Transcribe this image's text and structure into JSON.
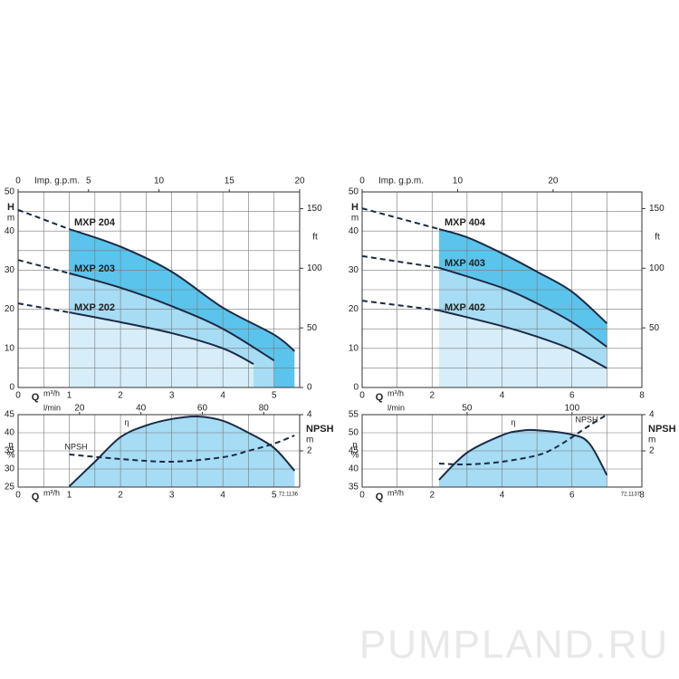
{
  "chart_data": [
    {
      "type": "line",
      "xlabel": "Q",
      "xunit": "m³/h",
      "ylabel": "H",
      "yunit": "m",
      "x2label": "Imp. g.p.m.",
      "y2unit": "ft",
      "xlim": [
        0,
        5.5
      ],
      "xticks": [
        0,
        1,
        2,
        3,
        4,
        5
      ],
      "xgrid": [
        0,
        0.5,
        1,
        1.5,
        2,
        2.5,
        3,
        3.5,
        4,
        4.5,
        5,
        5.5
      ],
      "ylim": [
        0,
        50
      ],
      "yticks": [
        0,
        10,
        20,
        30,
        40,
        50
      ],
      "ygrid": [
        0,
        5,
        10,
        15,
        20,
        25,
        30,
        35,
        40,
        45,
        50
      ],
      "x2lim": [
        0,
        20
      ],
      "x2ticks": [
        0,
        5,
        10,
        15,
        20
      ],
      "y2lim": [
        0,
        164
      ],
      "y2ticks": [
        0,
        50,
        100,
        150
      ],
      "series": [
        {
          "name": "MXP 204",
          "color": "#1b2b45",
          "fill": "#5bc4ec",
          "solid_from": 1,
          "x": [
            0,
            1,
            2,
            3,
            4,
            5,
            5.4
          ],
          "values": [
            45.4,
            40.5,
            36,
            29.6,
            20.4,
            13.5,
            9.3
          ]
        },
        {
          "name": "MXP 203",
          "color": "#1b2b45",
          "fill": "#a6dcf4",
          "solid_from": 1,
          "x": [
            0,
            1,
            2,
            3,
            4,
            5
          ],
          "values": [
            32.6,
            29.2,
            25.5,
            20.8,
            15,
            6.9
          ]
        },
        {
          "name": "MXP 202",
          "color": "#1b2b45",
          "fill": "#d7eefa",
          "solid_from": 1,
          "x": [
            0,
            1,
            2,
            3,
            4,
            4.6
          ],
          "values": [
            21.5,
            19.2,
            16.7,
            13.9,
            10,
            6
          ]
        }
      ]
    },
    {
      "type": "line",
      "xlabel": "Q",
      "xunit": "m³/h",
      "ylabel": "η",
      "yunit": "%",
      "x2unit": "l/min",
      "y2label": "NPSH",
      "y2unit": "m",
      "code": "72.1136",
      "xlim": [
        0,
        5.5
      ],
      "xticks": [
        0,
        1,
        2,
        3,
        4,
        5
      ],
      "xgrid": [
        0,
        0.5,
        1,
        1.5,
        2,
        2.5,
        3,
        3.5,
        4,
        4.5,
        5,
        5.5
      ],
      "ylim": [
        25,
        45
      ],
      "yticks": [
        25,
        30,
        35,
        40,
        45
      ],
      "ygrid": [
        25,
        30,
        35,
        40,
        45
      ],
      "x2lim": [
        0,
        91.7
      ],
      "x2ticks": [
        20,
        40,
        60,
        80
      ],
      "y2lim": [
        0,
        4
      ],
      "y2ticks": [
        2,
        4
      ],
      "series": [
        {
          "name": "η",
          "color": "#1b2b45",
          "fill": "#a6dcf4",
          "x": [
            1,
            1.5,
            2,
            2.5,
            3,
            3.5,
            4,
            4.5,
            5,
            5.4
          ],
          "values": [
            25.2,
            32,
            38.8,
            42,
            43.8,
            44.5,
            43.3,
            40,
            35.8,
            29.5
          ]
        },
        {
          "name": "NPSH",
          "color": "#1b2b45",
          "axis": "y2",
          "dashed": true,
          "x": [
            1,
            2,
            3,
            4,
            4.5,
            5,
            5.4
          ],
          "values": [
            1.8,
            1.55,
            1.4,
            1.65,
            2,
            2.4,
            2.85
          ]
        }
      ]
    },
    {
      "type": "line",
      "xlabel": "Q",
      "xunit": "m³/h",
      "ylabel": "H",
      "yunit": "m",
      "x2label": "Imp. g.p.m.",
      "y2unit": "ft",
      "xlim": [
        0,
        8
      ],
      "xticks": [
        0,
        2,
        4,
        6,
        8
      ],
      "xgrid": [
        0,
        1,
        2,
        3,
        4,
        5,
        6,
        7,
        8
      ],
      "ylim": [
        0,
        50
      ],
      "yticks": [
        0,
        10,
        20,
        30,
        40,
        50
      ],
      "ygrid": [
        0,
        5,
        10,
        15,
        20,
        25,
        30,
        35,
        40,
        45,
        50
      ],
      "x2lim": [
        0,
        29.3
      ],
      "x2ticks": [
        0,
        10,
        20
      ],
      "y2lim": [
        0,
        164
      ],
      "y2ticks": [
        50,
        100,
        150
      ],
      "series": [
        {
          "name": "MXP 404",
          "color": "#1b2b45",
          "fill": "#5bc4ec",
          "solid_from": 1,
          "x": [
            0,
            2.2,
            3,
            4,
            5,
            6,
            7
          ],
          "values": [
            45.8,
            40.5,
            38.4,
            34.3,
            29.6,
            24.5,
            16.4
          ]
        },
        {
          "name": "MXP 403",
          "color": "#1b2b45",
          "fill": "#a6dcf4",
          "solid_from": 1,
          "x": [
            0,
            2.2,
            4,
            5,
            6,
            7
          ],
          "values": [
            33.6,
            30.6,
            25.5,
            21.5,
            16.7,
            10.4
          ]
        },
        {
          "name": "MXP 402",
          "color": "#1b2b45",
          "fill": "#d7eefa",
          "solid_from": 1,
          "x": [
            0,
            2.2,
            4,
            5,
            6,
            7
          ],
          "values": [
            22.2,
            19.7,
            15.7,
            13,
            9.7,
            4.9
          ]
        }
      ]
    },
    {
      "type": "line",
      "xlabel": "Q",
      "xunit": "m³/h",
      "ylabel": "η",
      "yunit": "%",
      "x2unit": "l/min",
      "y2label": "NPSH",
      "y2unit": "m",
      "code": "72.1137",
      "xlim": [
        0,
        8
      ],
      "xticks": [
        0,
        2,
        4,
        6,
        8
      ],
      "xgrid": [
        0,
        1,
        2,
        3,
        4,
        5,
        6,
        7,
        8
      ],
      "ylim": [
        35,
        55
      ],
      "yticks": [
        35,
        40,
        45,
        50,
        55
      ],
      "ygrid": [
        35,
        40,
        45,
        50,
        55
      ],
      "x2lim": [
        0,
        133.3
      ],
      "x2ticks": [
        50,
        100
      ],
      "y2lim": [
        0,
        4
      ],
      "y2ticks": [
        2,
        4
      ],
      "series": [
        {
          "name": "η",
          "color": "#1b2b45",
          "fill": "#a6dcf4",
          "x": [
            2.2,
            3,
            4,
            4.5,
            5,
            6,
            6.5,
            7
          ],
          "values": [
            37,
            44.5,
            49.3,
            50.5,
            50.7,
            49.5,
            47,
            38.3
          ]
        },
        {
          "name": "NPSH",
          "color": "#1b2b45",
          "axis": "y2",
          "dashed": true,
          "x": [
            2.2,
            3,
            4,
            5,
            5.5,
            6,
            6.5,
            7
          ],
          "values": [
            1.3,
            1.25,
            1.4,
            1.75,
            2.15,
            2.75,
            3.4,
            4
          ]
        }
      ]
    }
  ],
  "watermark": "PUMPLAND.RU"
}
